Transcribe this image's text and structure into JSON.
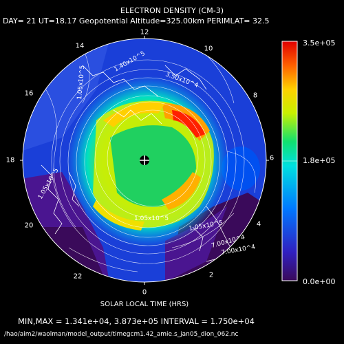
{
  "title": "ELECTRON DENSITY (CM-3)",
  "subtitle": "DAY= 21 UT=18.17 Geopotential Altitude=325.00km PERIMLAT= 32.5",
  "hour_labels": [
    "12",
    "14",
    "10",
    "16",
    "8",
    "18",
    "6",
    "20",
    "4",
    "22",
    "2",
    "0"
  ],
  "colorbar": {
    "max_label": "3.5e+05",
    "mid_label": "1.8e+05",
    "min_label": "0.0e+00",
    "colors": [
      "#3a0a5a",
      "#3020c0",
      "#0078ff",
      "#00e0e0",
      "#10e070",
      "#c8f000",
      "#ffd000",
      "#ff6000",
      "#e00000"
    ]
  },
  "contour_labels": [
    "1.40x10^5",
    "1.05x10^5",
    "1.05x10^5",
    "7.00x10^4",
    "1.05x10^5",
    "1.05x10^5",
    "3.50x10^4",
    "7.00x10^4"
  ],
  "x_axis_label": "SOLAR LOCAL TIME (HRS)",
  "minmax_text": "MIN,MAX =  1.341e+04, 3.873e+05 INTERVAL =  1.750e+04",
  "file_path": "/hao/aim2/waolman/model_output/timegcm1.42_amie.s_jan05_dion_062.nc",
  "chart_data": {
    "type": "heatmap",
    "projection": "polar",
    "title": "ELECTRON DENSITY (CM-3)",
    "variable": "electron density",
    "units": "cm-3",
    "day": 21,
    "ut": 18.17,
    "altitude_km": 325.0,
    "perimlat": 32.5,
    "min": 13410,
    "max": 387300,
    "contour_interval": 17500,
    "colorbar_range": [
      0,
      350000
    ],
    "angular_axis": "SOLAR LOCAL TIME (HRS)",
    "angular_ticks": [
      0,
      2,
      4,
      6,
      8,
      10,
      12,
      14,
      16,
      18,
      20,
      22
    ]
  }
}
